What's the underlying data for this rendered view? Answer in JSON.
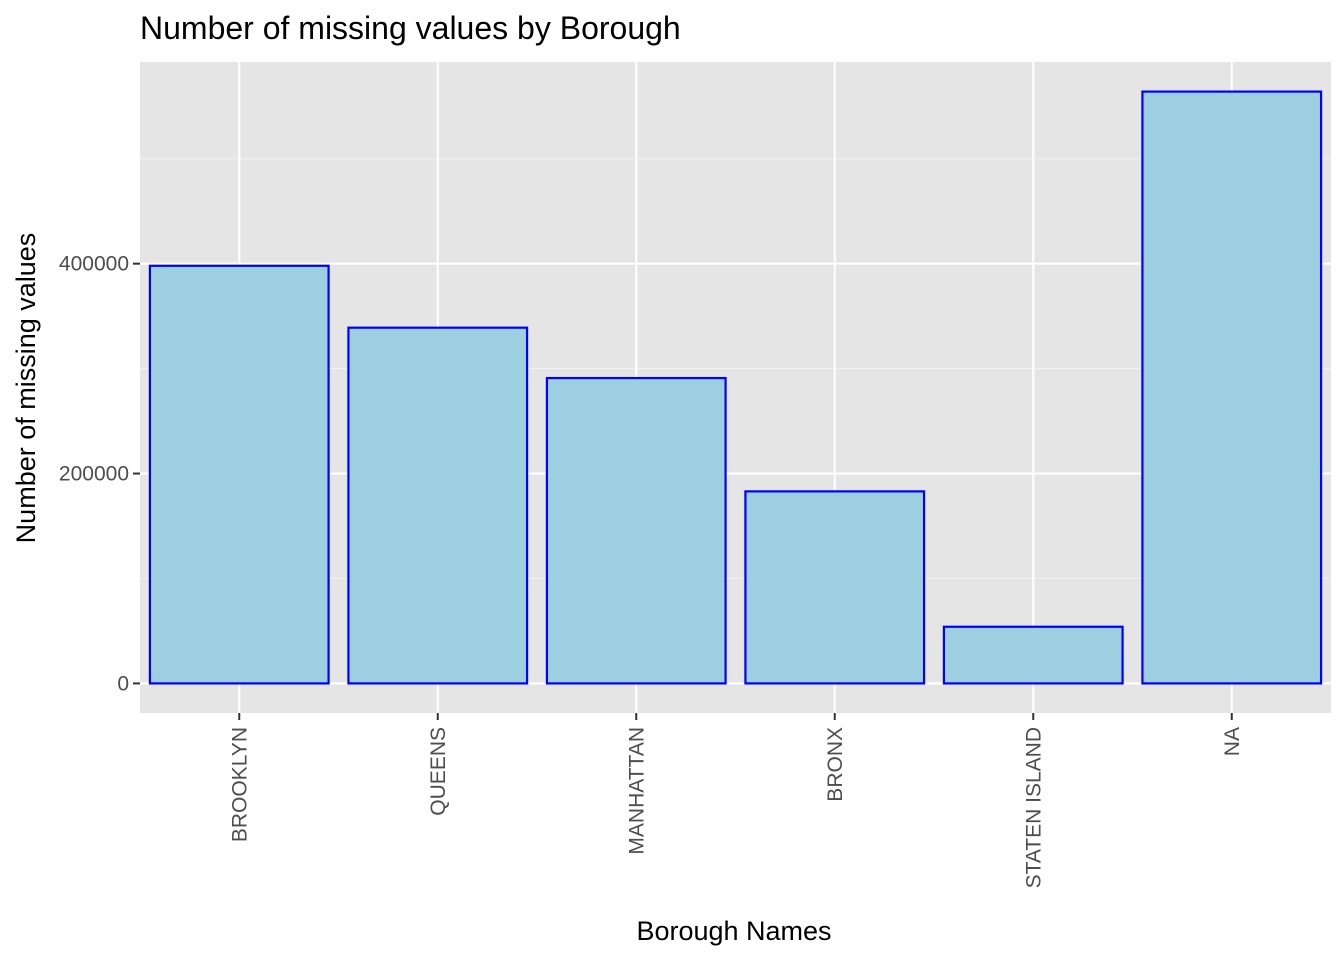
{
  "chart_data": {
    "type": "bar",
    "title": "Number of missing values by Borough",
    "xlabel": "Borough Names",
    "ylabel": "Number of missing values",
    "categories": [
      "BROOKLYN",
      "QUEENS",
      "MANHATTAN",
      "BRONX",
      "STATEN ISLAND",
      "NA"
    ],
    "values": [
      398000,
      339000,
      291000,
      183000,
      54000,
      564000
    ],
    "ylim": [
      -28200,
      592200
    ],
    "yticks": [
      0,
      200000,
      400000
    ],
    "ytick_labels": [
      "0",
      "200000",
      "400000"
    ],
    "grid": true,
    "legend": "none",
    "colors": {
      "bar_fill": "#9ecfe0",
      "bar_stroke": "#0000ff",
      "panel_background": "#e5e5e5",
      "grid_major": "#ffffff",
      "grid_minor": "#f2f2f2",
      "tick_text": "#4d4d4d",
      "axis_text": "#000000"
    }
  }
}
